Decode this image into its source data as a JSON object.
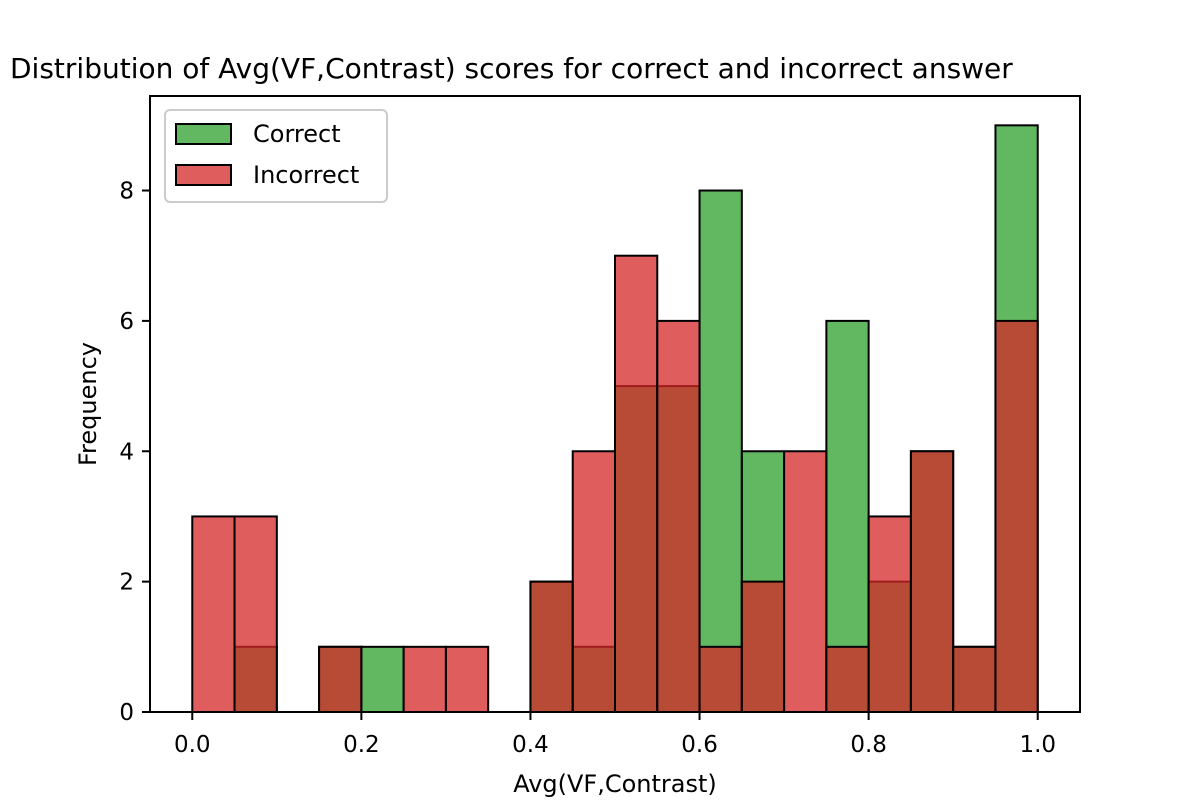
{
  "chart_data": {
    "type": "bar",
    "subtype": "overlaid-histogram",
    "title": "Distribution of Avg(VF,Contrast) scores for correct and incorrect answer",
    "xlabel": "Avg(VF,Contrast)",
    "ylabel": "Frequency",
    "xlim": [
      -0.05,
      1.05
    ],
    "ylim": [
      0,
      9.45
    ],
    "xticks": [
      0.0,
      0.2,
      0.4,
      0.6,
      0.8,
      1.0
    ],
    "xtick_labels": [
      "0.0",
      "0.2",
      "0.4",
      "0.6",
      "0.8",
      "1.0"
    ],
    "yticks": [
      0,
      2,
      4,
      6,
      8
    ],
    "ytick_labels": [
      "0",
      "2",
      "4",
      "6",
      "8"
    ],
    "bin_edges": [
      0.0,
      0.05,
      0.1,
      0.15,
      0.2,
      0.25,
      0.3,
      0.35,
      0.4,
      0.45,
      0.5,
      0.55,
      0.6,
      0.65,
      0.7,
      0.75,
      0.8,
      0.85,
      0.9,
      0.95,
      1.0
    ],
    "series": [
      {
        "name": "Correct",
        "color": "#2ca02c",
        "values": [
          0,
          1,
          0,
          1,
          1,
          0,
          0,
          0,
          2,
          1,
          5,
          5,
          8,
          4,
          0,
          6,
          2,
          4,
          1,
          9
        ]
      },
      {
        "name": "Incorrect",
        "color": "#d62728",
        "values": [
          3,
          3,
          0,
          1,
          0,
          1,
          1,
          0,
          2,
          4,
          7,
          6,
          1,
          2,
          4,
          1,
          3,
          4,
          1,
          6
        ]
      }
    ],
    "legend_position": "top-left",
    "grid": false
  }
}
